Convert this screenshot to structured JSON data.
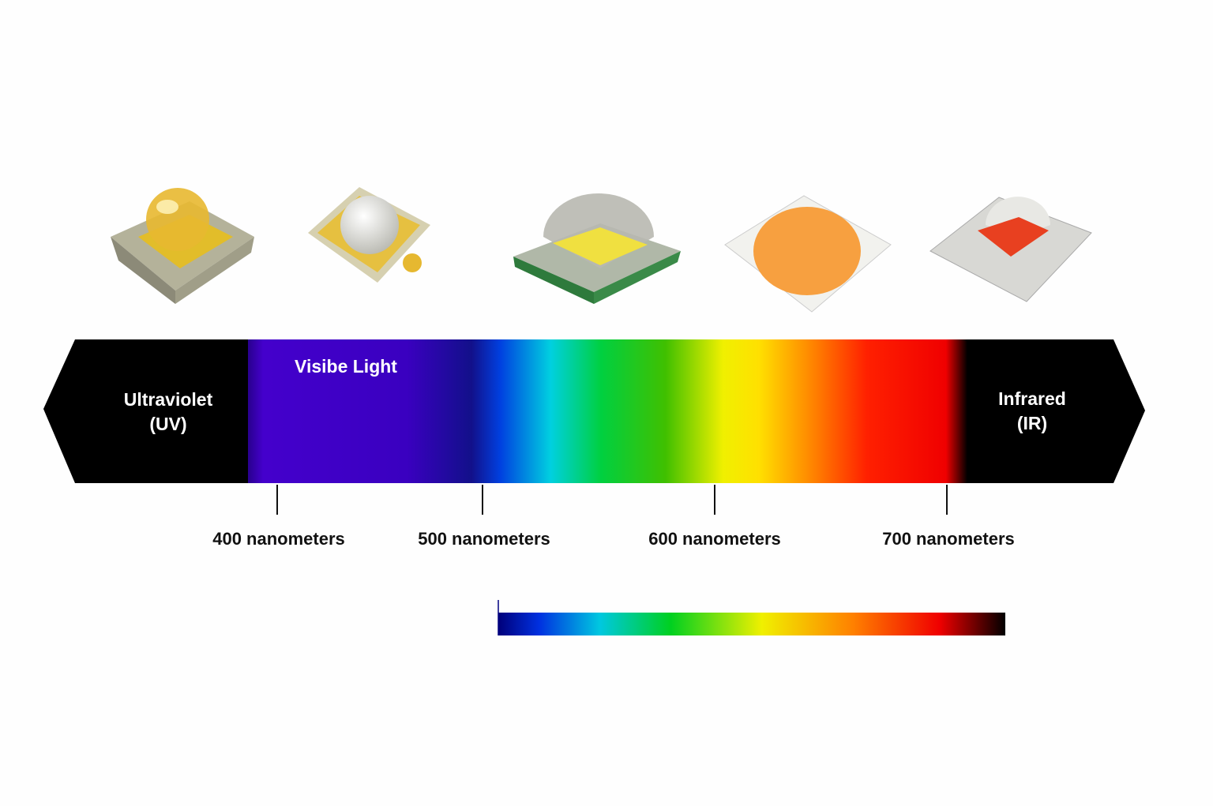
{
  "spectrum": {
    "ultraviolet": [
      "Ultraviolet",
      "(UV)"
    ],
    "visible": "Visibe Light",
    "infrared": [
      "Infrared",
      "(IR)"
    ],
    "ticks": [
      "400 nanometers",
      "500 nanometers",
      "600 nanometers",
      "700 nanometers"
    ]
  }
}
